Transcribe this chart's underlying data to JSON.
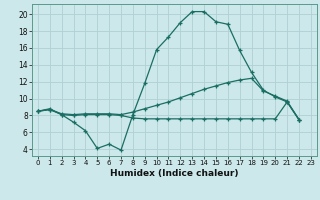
{
  "xlabel": "Humidex (Indice chaleur)",
  "bg_color": "#cce8ea",
  "grid_color": "#b0d0d3",
  "line_color": "#1a6e64",
  "xlim": [
    -0.5,
    23.5
  ],
  "ylim": [
    3.2,
    21.2
  ],
  "yticks": [
    4,
    6,
    8,
    10,
    12,
    14,
    16,
    18,
    20
  ],
  "xticks": [
    0,
    1,
    2,
    3,
    4,
    5,
    6,
    7,
    8,
    9,
    10,
    11,
    12,
    13,
    14,
    15,
    16,
    17,
    18,
    19,
    20,
    21,
    22,
    23
  ],
  "line1_x": [
    0,
    1,
    2,
    3,
    4,
    5,
    6,
    7,
    8,
    9,
    10,
    11,
    12,
    13,
    14,
    15,
    16,
    17,
    18,
    19,
    20,
    21,
    22
  ],
  "line1_y": [
    8.5,
    8.8,
    8.1,
    7.2,
    6.2,
    4.1,
    4.6,
    3.9,
    8.1,
    11.8,
    15.8,
    17.3,
    19.0,
    20.3,
    20.3,
    19.1,
    18.8,
    15.7,
    13.1,
    11.0,
    10.2,
    9.6,
    7.5
  ],
  "line2_x": [
    0,
    1,
    2,
    3,
    4,
    5,
    6,
    7,
    8,
    9,
    10,
    11,
    12,
    13,
    14,
    15,
    16,
    17,
    18,
    19,
    20,
    21,
    22
  ],
  "line2_y": [
    8.5,
    8.7,
    8.2,
    8.1,
    8.2,
    8.2,
    8.2,
    8.1,
    8.4,
    8.8,
    9.2,
    9.6,
    10.1,
    10.6,
    11.1,
    11.5,
    11.9,
    12.2,
    12.4,
    10.9,
    10.3,
    9.7,
    7.5
  ],
  "line3_x": [
    0,
    1,
    2,
    3,
    4,
    5,
    6,
    7,
    8,
    9,
    10,
    11,
    12,
    13,
    14,
    15,
    16,
    17,
    18,
    19,
    20,
    21,
    22
  ],
  "line3_y": [
    8.5,
    8.7,
    8.1,
    8.0,
    8.1,
    8.1,
    8.1,
    8.0,
    7.7,
    7.6,
    7.6,
    7.6,
    7.6,
    7.6,
    7.6,
    7.6,
    7.6,
    7.6,
    7.6,
    7.6,
    7.6,
    9.6,
    7.5
  ]
}
